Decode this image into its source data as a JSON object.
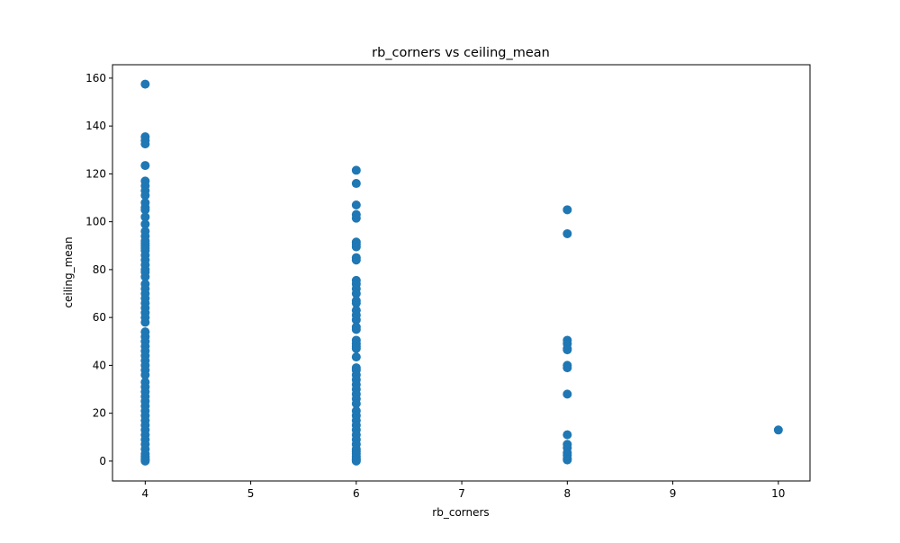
{
  "chart_data": {
    "type": "scatter",
    "title": "rb_corners vs ceiling_mean",
    "x_label": "rb_corners",
    "y_label": "ceiling_mean",
    "color": "#1f77b4",
    "x": [
      4,
      4,
      4,
      4,
      4,
      4,
      4,
      4,
      4,
      4,
      4,
      4,
      4,
      4,
      4,
      4,
      4,
      4,
      4,
      4,
      4,
      4,
      4,
      4,
      4,
      4,
      4,
      4,
      4,
      4,
      4,
      4,
      4,
      4,
      4,
      4,
      4,
      4,
      4,
      4,
      4,
      4,
      4,
      4,
      4,
      4,
      4,
      4,
      4,
      4,
      4,
      4,
      4,
      4,
      4,
      4,
      4,
      4,
      4,
      4,
      4,
      4,
      4,
      4,
      4,
      4,
      6,
      6,
      6,
      6,
      6,
      6,
      6,
      6,
      6,
      6,
      6,
      6,
      6,
      6,
      6,
      6,
      6,
      6,
      6,
      6,
      6,
      6,
      6,
      6,
      6,
      6,
      6,
      6,
      6,
      6,
      6,
      6,
      6,
      6,
      6,
      6,
      6,
      6,
      6,
      6,
      6,
      6,
      6,
      6,
      6,
      6,
      6,
      6,
      6,
      6,
      8,
      8,
      8,
      8,
      8,
      8,
      8,
      8,
      8,
      8,
      8,
      8,
      8,
      8,
      8,
      8,
      10
    ],
    "values": [
      157.5,
      135.5,
      134,
      132.5,
      123.5,
      117,
      115,
      113,
      111,
      108,
      106,
      105,
      102,
      99,
      96,
      94,
      92,
      91,
      90,
      89,
      88,
      86,
      84,
      82,
      80,
      79,
      77,
      74,
      72,
      70,
      68,
      66,
      64,
      62,
      60,
      58,
      54,
      52,
      50,
      48,
      46,
      44,
      42,
      40,
      38,
      36,
      33,
      31,
      29,
      27,
      25,
      23,
      21,
      19,
      17,
      15,
      13,
      11,
      9,
      7,
      5,
      3,
      2,
      1,
      0.5,
      0,
      121.5,
      116,
      107,
      103,
      101.5,
      91.5,
      90.5,
      89.5,
      85,
      84,
      75.5,
      74,
      72,
      70,
      67,
      66,
      63,
      61,
      59,
      56,
      55,
      50.5,
      49,
      48,
      47,
      43.5,
      39,
      38,
      36,
      34,
      32,
      30,
      28,
      26,
      24,
      21,
      19,
      17,
      15,
      13,
      11,
      9,
      7,
      5,
      4,
      3,
      2,
      1,
      0.5,
      0,
      105,
      95,
      50.5,
      49,
      47,
      46.5,
      40,
      39,
      28,
      11,
      7,
      5.5,
      3.5,
      2.5,
      1,
      0.5,
      13
    ],
    "xlim": [
      3.69,
      10.3
    ],
    "ylim": [
      -8.3,
      165.6
    ],
    "xticks": [
      4,
      5,
      6,
      7,
      8,
      9,
      10
    ],
    "yticks": [
      0,
      20,
      40,
      60,
      80,
      100,
      120,
      140,
      160
    ]
  }
}
